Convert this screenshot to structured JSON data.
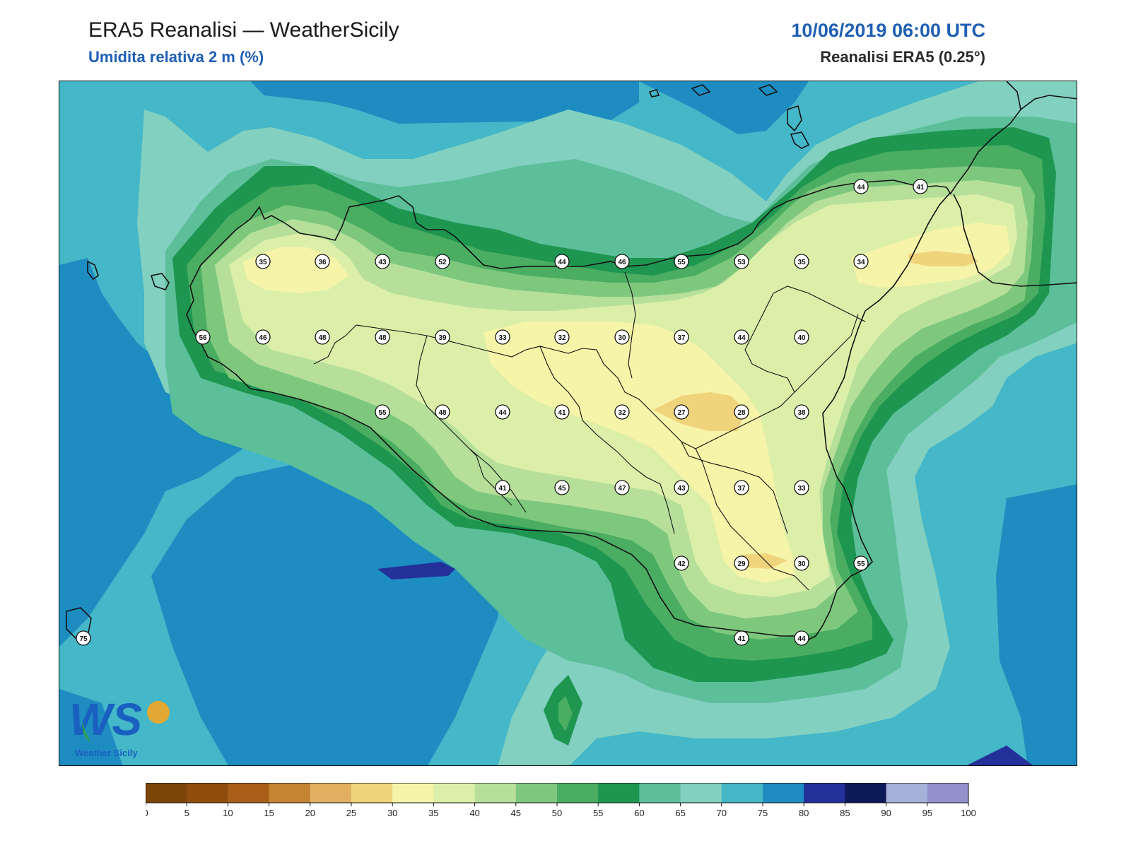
{
  "header": {
    "title": "ERA5 Reanalisi — WeatherSicily",
    "subtitle": "Umidita relativa 2 m (%)",
    "datetime": "10/06/2019 06:00 UTC",
    "source": "Reanalisi ERA5 (0.25°)"
  },
  "logo": {
    "text": "WS",
    "caption": "Weather Sicily",
    "icon": "weathersicily-logo"
  },
  "legend": {
    "ticks": [
      "0",
      "5",
      "10",
      "15",
      "20",
      "25",
      "30",
      "35",
      "40",
      "45",
      "50",
      "55",
      "60",
      "65",
      "70",
      "75",
      "80",
      "85",
      "90",
      "95",
      "100"
    ],
    "colors": [
      "#7a4506",
      "#8f4d0c",
      "#a85e16",
      "#c48532",
      "#e0b060",
      "#f0d47c",
      "#f6f4a8",
      "#dcefa8",
      "#b6e09a",
      "#7ec87e",
      "#4aad62",
      "#1e9650",
      "#5cbf9a",
      "#82d0bf",
      "#44b7c8",
      "#1d8cc1",
      "#24309a",
      "#0c1b58",
      "#a6b1da",
      "#9291cc"
    ]
  },
  "stations": [
    {
      "label": "35"
    },
    {
      "label": "36"
    },
    {
      "label": "43"
    },
    {
      "label": "52"
    },
    {
      "label": "44"
    },
    {
      "label": "46"
    },
    {
      "label": "55"
    },
    {
      "label": "53"
    },
    {
      "label": "35"
    },
    {
      "label": "34"
    },
    {
      "label": "44"
    },
    {
      "label": "41"
    },
    {
      "label": "56"
    },
    {
      "label": "46"
    },
    {
      "label": "48"
    },
    {
      "label": "48"
    },
    {
      "label": "39"
    },
    {
      "label": "33"
    },
    {
      "label": "32"
    },
    {
      "label": "30"
    },
    {
      "label": "37"
    },
    {
      "label": "44"
    },
    {
      "label": "40"
    },
    {
      "label": "55"
    },
    {
      "label": "48"
    },
    {
      "label": "44"
    },
    {
      "label": "41"
    },
    {
      "label": "32"
    },
    {
      "label": "27"
    },
    {
      "label": "28"
    },
    {
      "label": "38"
    },
    {
      "label": "41"
    },
    {
      "label": "45"
    },
    {
      "label": "47"
    },
    {
      "label": "43"
    },
    {
      "label": "37"
    },
    {
      "label": "33"
    },
    {
      "label": "42"
    },
    {
      "label": "29"
    },
    {
      "label": "30"
    },
    {
      "label": "55"
    },
    {
      "label": "41"
    },
    {
      "label": "44"
    },
    {
      "label": "75"
    }
  ]
}
